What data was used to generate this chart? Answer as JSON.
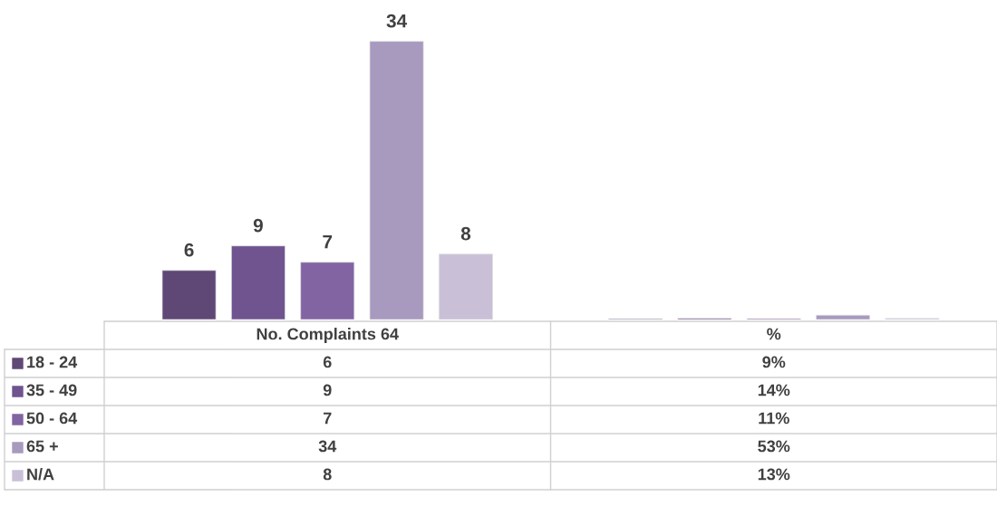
{
  "chart_data": {
    "type": "bar",
    "categories": [
      "No. Complaints 64",
      "%"
    ],
    "series": [
      {
        "name": "18 - 24",
        "color": "#5f4876",
        "values": [
          6,
          0.09
        ],
        "value_labels": [
          "6",
          "9%"
        ]
      },
      {
        "name": "35 - 49",
        "color": "#6f5490",
        "values": [
          9,
          0.14
        ],
        "value_labels": [
          "9",
          "14%"
        ]
      },
      {
        "name": "50 - 64",
        "color": "#8264a3",
        "values": [
          7,
          0.11
        ],
        "value_labels": [
          "7",
          "11%"
        ]
      },
      {
        "name": "65 +",
        "color": "#a899bf",
        "values": [
          34,
          0.53
        ],
        "value_labels": [
          "34",
          "53%"
        ]
      },
      {
        "name": "N/A",
        "color": "#c9c0d8",
        "values": [
          8,
          0.13
        ],
        "value_labels": [
          "8",
          "13%"
        ]
      }
    ],
    "legend": "left"
  }
}
